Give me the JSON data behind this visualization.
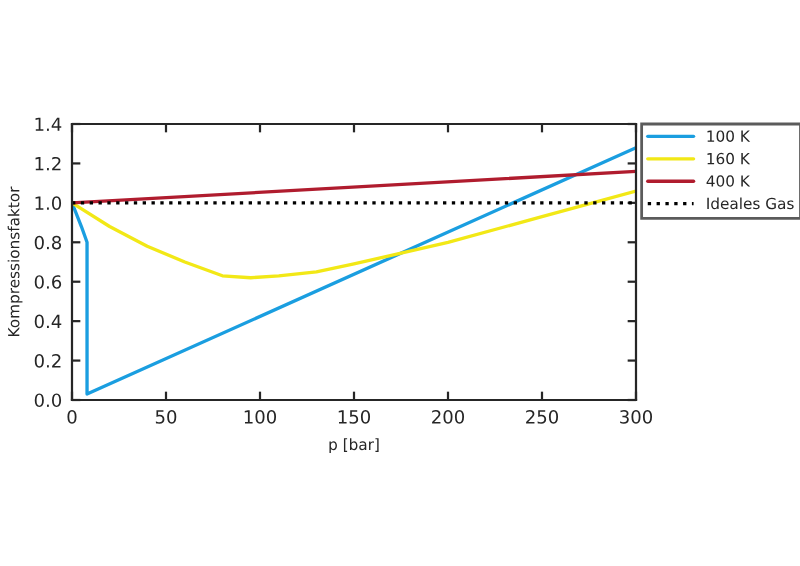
{
  "chart_data": {
    "type": "line",
    "xlabel": "p [bar]",
    "ylabel": "Kompressionsfaktor",
    "xlim": [
      0,
      300
    ],
    "xticks": [
      0,
      50,
      100,
      150,
      200,
      250,
      300
    ],
    "ylim": [
      0,
      1.4
    ],
    "yticks": [
      {
        "value": 0,
        "label": "0.0"
      },
      0.2,
      0.4,
      0.6,
      0.8,
      {
        "value": 1,
        "label": "1.0"
      },
      1.2,
      1.4
    ],
    "legend": "top right",
    "grid": false,
    "series": [
      {
        "name": "100 K",
        "color": "#1a9ee0",
        "x": [
          0,
          5,
          8,
          8,
          300
        ],
        "values": [
          1.0,
          0.88,
          0.8,
          0.03,
          1.28
        ]
      },
      {
        "name": "160 K",
        "color": "#f2e816",
        "x": [
          0,
          20,
          40,
          60,
          80,
          95,
          110,
          130,
          150,
          200,
          250,
          300
        ],
        "values": [
          1.0,
          0.88,
          0.78,
          0.7,
          0.63,
          0.62,
          0.63,
          0.65,
          0.69,
          0.8,
          0.93,
          1.06
        ]
      },
      {
        "name": "400 K",
        "color": "#b01c2e",
        "x": [
          0,
          300
        ],
        "values": [
          1.0,
          1.16
        ]
      },
      {
        "name": "Ideales Gas",
        "color": "#000000",
        "line_style": "dotted",
        "x": [
          0,
          300
        ],
        "values": [
          1.0,
          1.0
        ]
      }
    ]
  }
}
